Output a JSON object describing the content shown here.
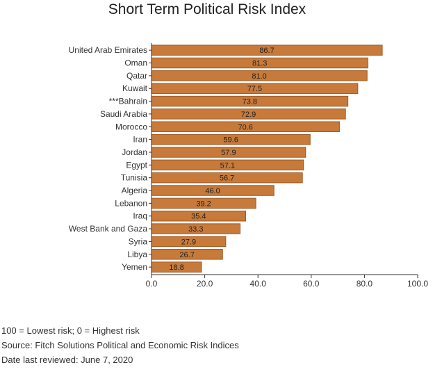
{
  "chart_data": {
    "type": "bar",
    "orientation": "horizontal",
    "title": "Short Term Political Risk Index",
    "categories": [
      "United Arab Emirates",
      "Oman",
      "Qatar",
      "Kuwait",
      "***Bahrain",
      "Saudi Arabia",
      "Morocco",
      "Iran",
      "Jordan",
      "Egypt",
      "Tunisia",
      "Algeria",
      "Lebanon",
      "Iraq",
      "West Bank and Gaza",
      "Syria",
      "Libya",
      "Yemen"
    ],
    "values": [
      86.7,
      81.3,
      81.0,
      77.5,
      73.8,
      72.9,
      70.6,
      59.6,
      57.9,
      57.1,
      56.7,
      46.0,
      39.2,
      35.4,
      33.3,
      27.9,
      26.7,
      18.8
    ],
    "data_labels": [
      "86.7",
      "81.3",
      "81.0",
      "77.5",
      "73.8",
      "72.9",
      "70.6",
      "59.6",
      "57.9",
      "57.1",
      "56.7",
      "46.0",
      "39.2",
      "35.4",
      "33.3",
      "27.9",
      "26.7",
      "18.8"
    ],
    "xlim": [
      0,
      100
    ],
    "xticks": [
      "0.0",
      "20.0",
      "40.0",
      "60.0",
      "80.0",
      "100.0"
    ],
    "grid": false,
    "bar_color": "#c87a3a",
    "bar_edge_color": "#9a5a25"
  },
  "footnotes": {
    "scale_note": "100 = Lowest risk; 0 = Highest risk",
    "source": "Source: Fitch Solutions Political and Economic Risk Indices",
    "date": "Date last reviewed: June 7, 2020"
  }
}
